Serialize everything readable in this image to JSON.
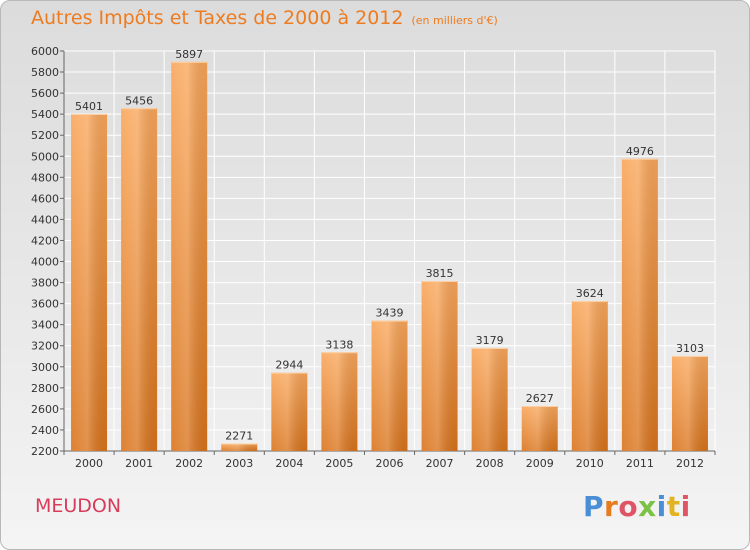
{
  "title": "Autres Impôts et Taxes de 2000 à 2012",
  "subtitle": "(en milliers d'€)",
  "town": "MEUDON",
  "logo": {
    "text": "Proxiti",
    "letter_colors": [
      "#4a8ed6",
      "#e57d1e",
      "#e05566",
      "#7cc244",
      "#4a8ed6",
      "#e2b322",
      "#e05566"
    ]
  },
  "colors": {
    "bar_light": "#f9a65a",
    "bar_dark": "#d9731b",
    "title": "#ee7b1f",
    "town": "#d83c5b",
    "grid": "#ffffff"
  },
  "chart_data": {
    "type": "bar",
    "categories": [
      "2000",
      "2001",
      "2002",
      "2003",
      "2004",
      "2005",
      "2006",
      "2007",
      "2008",
      "2009",
      "2010",
      "2011",
      "2012"
    ],
    "values": [
      5401,
      5456,
      5897,
      2271,
      2944,
      3138,
      3439,
      3815,
      3179,
      2627,
      3624,
      4976,
      3103
    ],
    "ylim": [
      2200,
      6000
    ],
    "yticks": [
      2200,
      2400,
      2600,
      2800,
      3000,
      3200,
      3400,
      3600,
      3800,
      4000,
      4200,
      4400,
      4600,
      4800,
      5000,
      5200,
      5400,
      5600,
      5800,
      6000
    ],
    "grid": true
  }
}
